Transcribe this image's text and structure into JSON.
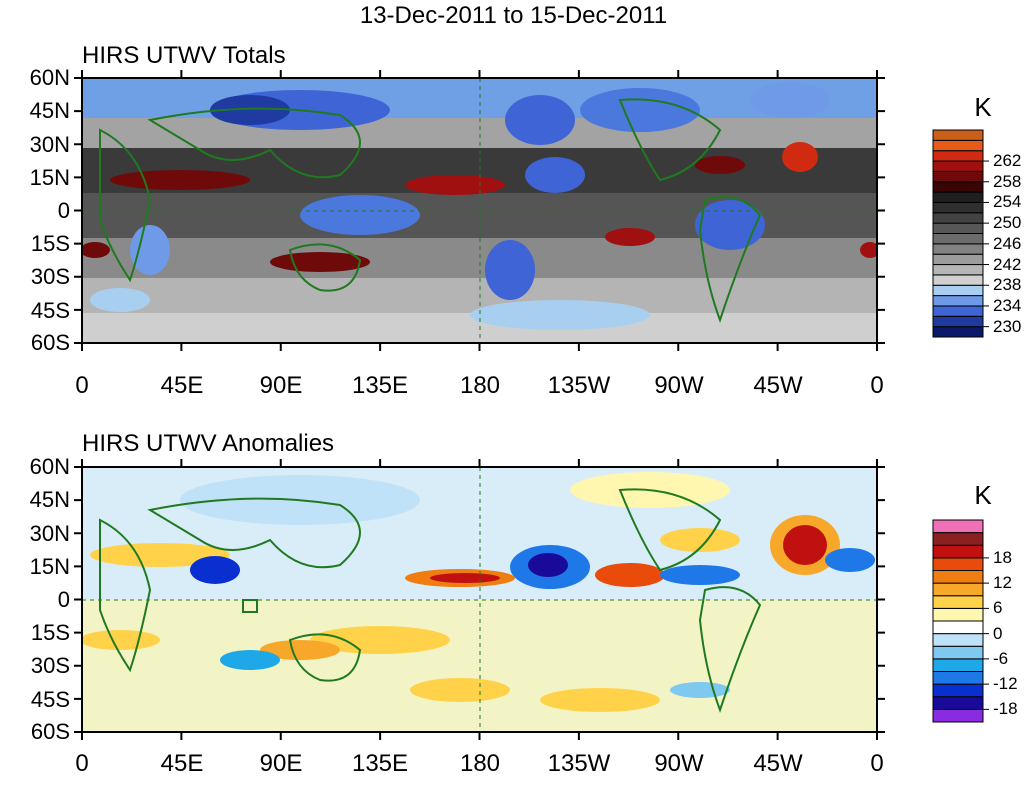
{
  "title": "13-Dec-2011 to 15-Dec-2011",
  "lat_ticks": [
    "60N",
    "45N",
    "30N",
    "15N",
    "0",
    "15S",
    "30S",
    "45S",
    "60S"
  ],
  "lon_ticks": [
    "0",
    "45E",
    "90E",
    "135E",
    "180",
    "135W",
    "90W",
    "45W",
    "0"
  ],
  "panels": [
    {
      "id": "totals",
      "title": "HIRS UTWV Totals",
      "unit": "K",
      "colorbar": {
        "colors": [
          "#0a1a6b",
          "#1f3aa0",
          "#3f64d6",
          "#6f9ae8",
          "#a9cff0",
          "#d0d0d0",
          "#b6b6b6",
          "#9c9c9c",
          "#828282",
          "#6c6c6c",
          "#575757",
          "#434343",
          "#2f2f2f",
          "#1f1f1f",
          "#3a0505",
          "#6e0a0a",
          "#a01010",
          "#d02a10",
          "#e85a18",
          "#c8601a"
        ],
        "labels": [
          "230",
          "234",
          "238",
          "242",
          "246",
          "250",
          "254",
          "258",
          "262"
        ],
        "label_step_from_bottom": [
          1,
          3,
          5,
          7,
          9,
          11,
          13,
          15,
          17
        ]
      }
    },
    {
      "id": "anomalies",
      "title": "HIRS UTWV Anomalies",
      "unit": "K",
      "colorbar": {
        "colors": [
          "#8a2be2",
          "#1a0a9a",
          "#0a2fd0",
          "#1f78e8",
          "#1ea8e8",
          "#7fc8f0",
          "#bfe2f8",
          "#ffffff",
          "#fff6b0",
          "#ffd24a",
          "#f7a82a",
          "#f07d10",
          "#e84b0a",
          "#c01010",
          "#8a2020",
          "#f070b8"
        ],
        "labels": [
          "-18",
          "-12",
          "-6",
          "0",
          "6",
          "12",
          "18"
        ],
        "label_step_from_bottom": [
          1,
          3,
          5,
          7,
          9,
          11,
          13
        ]
      }
    }
  ]
}
